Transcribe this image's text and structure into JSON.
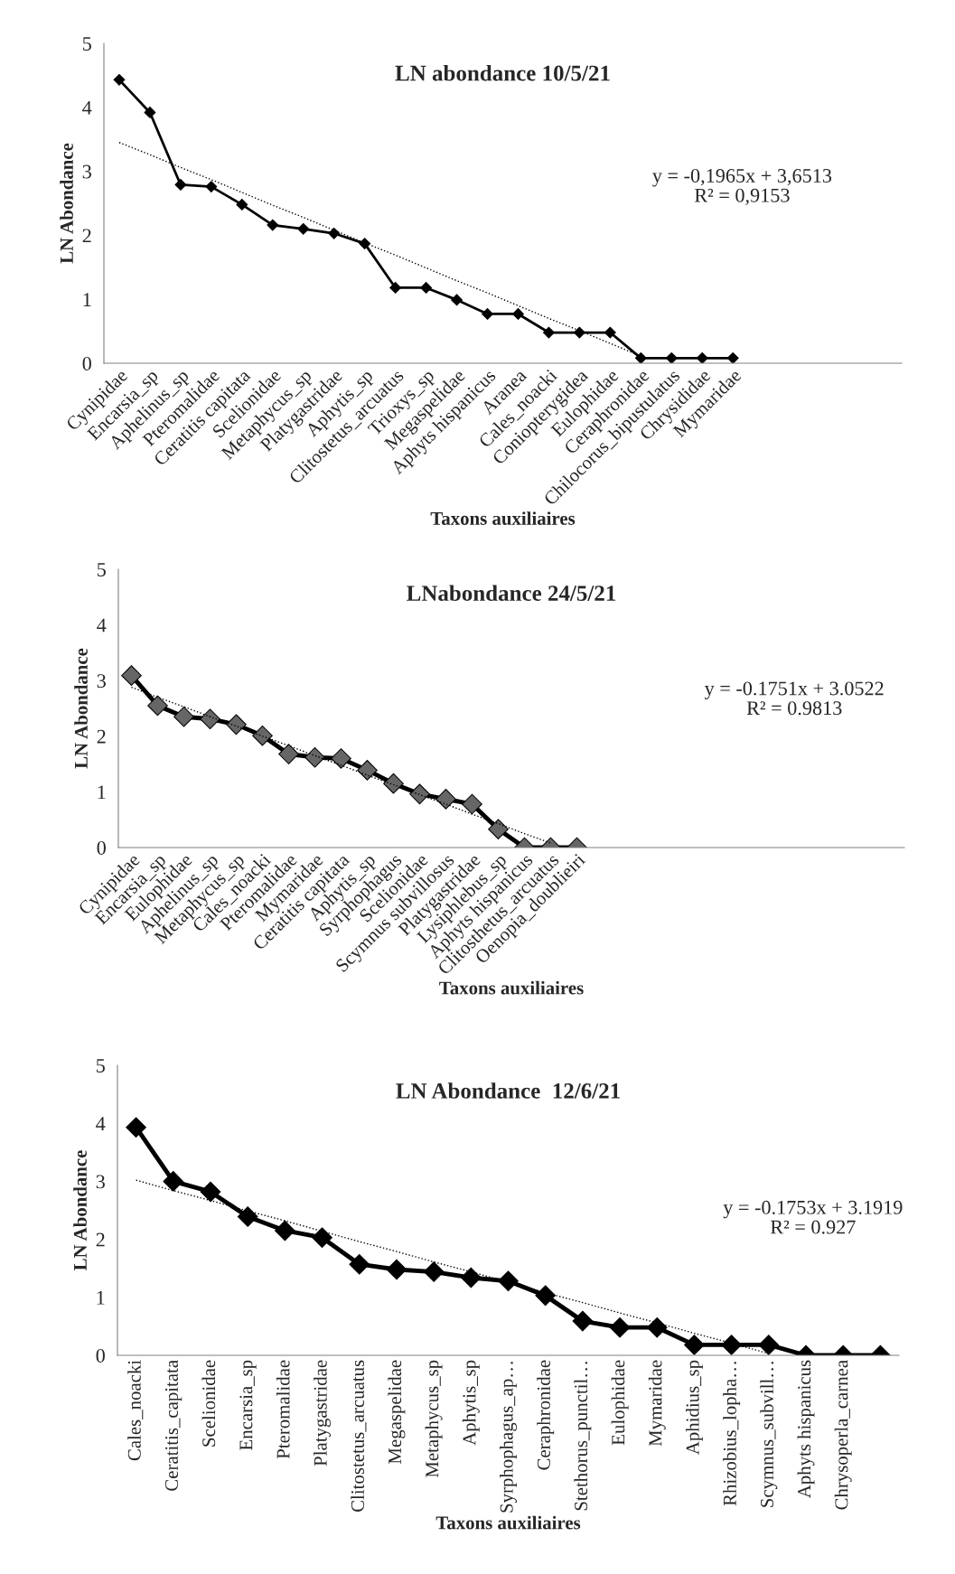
{
  "chart_data": [
    {
      "type": "line",
      "title": "LN abondance 10/5/21",
      "xlabel": "Taxons auxiliaires",
      "ylabel": "LN Abondance",
      "categories": [
        "Cynipidae",
        "Encarsia_sp",
        "Aphelinus_sp",
        "Pteromalidae",
        "Ceratitis capitata",
        "Scelionidae",
        "Metaphycus_sp",
        "Platygastridae",
        "Aphytis_sp",
        "Clitostetus_arcuatus",
        "Trioxys_sp",
        "Megaspelidae",
        "Aphyts hispanicus",
        "Aranea",
        "Cales_noacki",
        "Coniopterygidea",
        "Eulophidae",
        "Ceraphronidae",
        "Chilocorus_bipustulatus",
        "Chrysididae",
        "Mymaridae",
        null,
        null,
        null,
        null,
        null
      ],
      "series": [
        {
          "color": "#000000",
          "marker": "diamond",
          "line_style": "solid",
          "values": [
            4.43,
            3.92,
            2.79,
            2.76,
            2.48,
            2.16,
            2.1,
            2.03,
            1.87,
            1.18,
            1.18,
            0.99,
            0.77,
            0.77,
            0.48,
            0.48,
            0.48,
            0.08,
            0.08,
            0.08,
            0.08,
            null,
            null,
            null,
            null,
            null
          ]
        },
        {
          "type": "line",
          "color": "#000000",
          "marker": "none",
          "line_style": "dotted",
          "values": [
            3.45,
            3.26,
            3.06,
            2.87,
            2.67,
            2.47,
            2.28,
            2.08,
            1.88,
            1.69,
            1.49,
            1.29,
            1.1,
            0.9,
            0.7,
            0.51,
            0.31,
            0.11,
            null,
            null,
            null,
            null,
            null,
            null,
            null,
            null
          ]
        }
      ],
      "ylim": [
        0,
        5
      ],
      "yticks": [
        0,
        1,
        2,
        3,
        4,
        5
      ],
      "grid": false,
      "legend": false,
      "annotations": [
        "y = -0,1965x + 3,6513",
        "R² = 0,9153"
      ]
    },
    {
      "type": "line",
      "title": "LNabondance 24/5/21",
      "xlabel": "Taxons auxiliaires",
      "ylabel": "LN Abondance",
      "categories": [
        "Cynipidae",
        "Encarsia_sp",
        "Eulophidae",
        "Aphelinus_sp",
        "Metaphycus_sp",
        "Cales_noacki",
        "Pteromalidae",
        "Mymaridae",
        "Ceratitis capitata",
        "Aphytis_sp",
        "Syrphophagus",
        "Scelionidae",
        "Scymnus subvillosus",
        "Platygastridae",
        "Lysiphlebus_sp",
        "Aphyts hispanicus",
        "Clitosthetus_arcuatus",
        "Oenopia_doublieiri",
        null,
        null,
        null,
        null,
        null,
        null,
        null,
        null,
        null,
        null,
        null,
        null
      ],
      "series": [
        {
          "color": "#000000",
          "marker": "diamond",
          "line_style": "solid",
          "values": [
            3.09,
            2.55,
            2.35,
            2.31,
            2.21,
            2.01,
            1.68,
            1.62,
            1.6,
            1.39,
            1.15,
            0.96,
            0.87,
            0.78,
            0.33,
            0,
            0,
            0,
            null,
            null,
            null,
            null,
            null,
            null,
            null,
            null,
            null,
            null,
            null,
            null
          ]
        },
        {
          "type": "line",
          "color": "#000000",
          "marker": "none",
          "line_style": "dotted",
          "values": [
            2.88,
            2.7,
            2.53,
            2.35,
            2.18,
            2.0,
            1.83,
            1.65,
            1.48,
            1.3,
            1.13,
            0.95,
            0.78,
            0.6,
            0.43,
            0.25,
            0.08,
            null,
            null,
            null,
            null,
            null,
            null,
            null,
            null,
            null,
            null,
            null,
            null,
            null
          ]
        }
      ],
      "ylim": [
        0,
        5
      ],
      "yticks": [
        0,
        1,
        2,
        3,
        4,
        5
      ],
      "grid": false,
      "legend": false,
      "annotations": [
        "y = -0.1751x + 3.0522",
        "R² = 0.9813"
      ]
    },
    {
      "type": "line",
      "title": "LN Abondance  12/6/21",
      "xlabel": "Taxons auxiliaires",
      "ylabel": "LN Abondance",
      "categories": [
        "Cales_noacki",
        "Ceratitis_capitata",
        "Scelionidae",
        "Encarsia_sp",
        "Pteromalidae",
        "Platygastridae",
        "Clitostetus_arcuatus",
        "Megaspelidae",
        "Metaphycus_sp",
        "Aphytis_sp",
        "Syrphophagus_ap…",
        "Ceraphronidae",
        "Stethorus_punctil…",
        "Eulophidae",
        "Mymaridae",
        "Aphidius_sp",
        "Rhizobius_lopha…",
        "Scymnus_subvill…",
        "Aphyts hispanicus",
        "Chrysoperla_carnea",
        null
      ],
      "series": [
        {
          "color": "#000000",
          "marker": "diamond",
          "line_style": "solid",
          "values": [
            3.93,
            3.0,
            2.82,
            2.39,
            2.15,
            2.03,
            1.57,
            1.48,
            1.44,
            1.34,
            1.28,
            1.03,
            0.59,
            0.48,
            0.48,
            0.18,
            0.18,
            0.18,
            0,
            0,
            0
          ]
        },
        {
          "type": "line",
          "color": "#000000",
          "marker": "none",
          "line_style": "dotted",
          "values": [
            3.02,
            2.84,
            2.67,
            2.49,
            2.32,
            2.14,
            1.96,
            1.79,
            1.61,
            1.44,
            1.26,
            1.08,
            0.91,
            0.73,
            0.56,
            0.38,
            0.21,
            0.03,
            null,
            null,
            null
          ]
        }
      ],
      "ylim": [
        0,
        5
      ],
      "yticks": [
        0,
        1,
        2,
        3,
        4,
        5
      ],
      "grid": false,
      "legend": false,
      "annotations": [
        "y = -0.1753x + 3.1919",
        "R² = 0.927"
      ]
    }
  ]
}
